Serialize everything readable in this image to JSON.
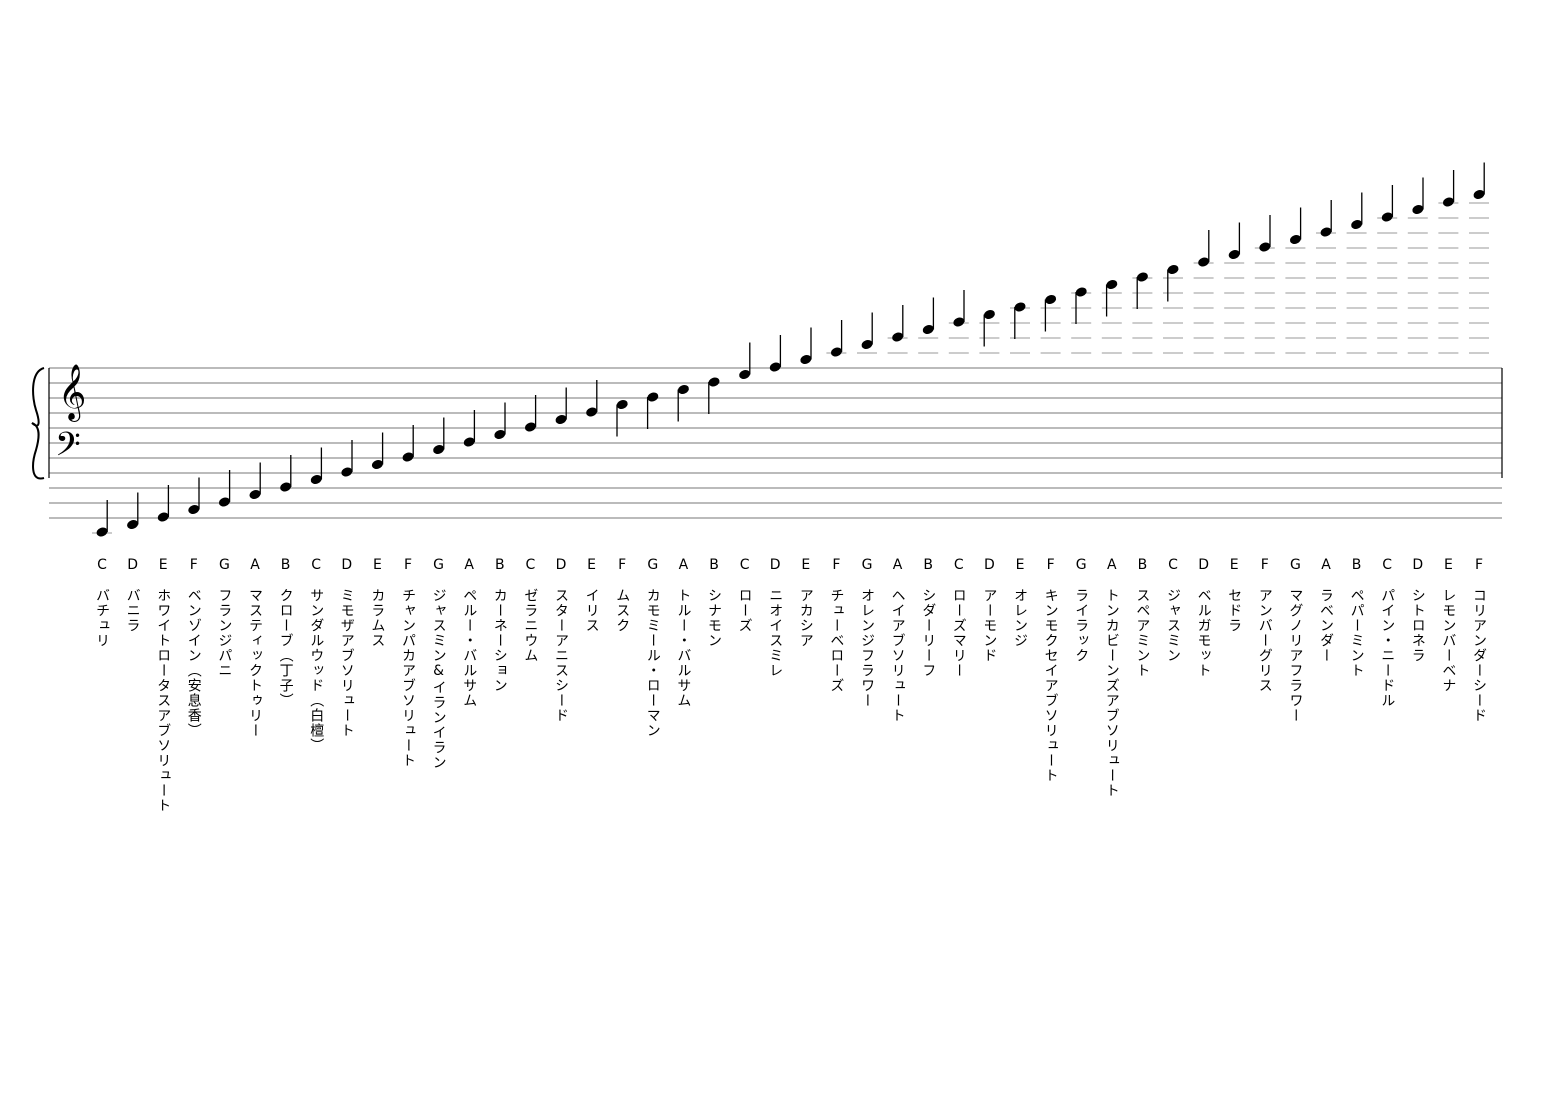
{
  "notes": [
    {
      "letter": "C",
      "name": "バチュリ"
    },
    {
      "letter": "D",
      "name": "バニラ"
    },
    {
      "letter": "E",
      "name": "ホワイトロータスアブソリュート"
    },
    {
      "letter": "F",
      "name": "ベンゾイン（安息香）"
    },
    {
      "letter": "G",
      "name": "フランジパニ"
    },
    {
      "letter": "A",
      "name": "マスティックトゥリー"
    },
    {
      "letter": "B",
      "name": "クローブ（丁子）"
    },
    {
      "letter": "C",
      "name": "サンダルウッド（白檀）"
    },
    {
      "letter": "D",
      "name": "ミモザアブソリュート"
    },
    {
      "letter": "E",
      "name": "カラムス"
    },
    {
      "letter": "F",
      "name": "チャンパカアブソリュート"
    },
    {
      "letter": "G",
      "name": "ジャスミン&イランイラン"
    },
    {
      "letter": "A",
      "name": "ペルー・バルサム"
    },
    {
      "letter": "B",
      "name": "カーネーション"
    },
    {
      "letter": "C",
      "name": "ゼラニウム"
    },
    {
      "letter": "D",
      "name": "スターアニスシード"
    },
    {
      "letter": "E",
      "name": "イリス"
    },
    {
      "letter": "F",
      "name": "ムスク"
    },
    {
      "letter": "G",
      "name": "カモミール・ローマン"
    },
    {
      "letter": "A",
      "name": "トルー・バルサム"
    },
    {
      "letter": "B",
      "name": "シナモン"
    },
    {
      "letter": "C",
      "name": "ローズ"
    },
    {
      "letter": "D",
      "name": "ニオイスミレ"
    },
    {
      "letter": "E",
      "name": "アカシア"
    },
    {
      "letter": "F",
      "name": "チューベローズ"
    },
    {
      "letter": "G",
      "name": "オレンジフラワー"
    },
    {
      "letter": "A",
      "name": "ヘイアブソリュート"
    },
    {
      "letter": "B",
      "name": "シダーリーフ"
    },
    {
      "letter": "C",
      "name": "ローズマリー"
    },
    {
      "letter": "D",
      "name": "アーモンド"
    },
    {
      "letter": "E",
      "name": "オレンジ"
    },
    {
      "letter": "F",
      "name": "キンモクセイアブソリュート"
    },
    {
      "letter": "G",
      "name": "ライラック"
    },
    {
      "letter": "A",
      "name": "トンカビーンズアブソリュート"
    },
    {
      "letter": "B",
      "name": "スペアミント"
    },
    {
      "letter": "C",
      "name": "ジャスミン"
    },
    {
      "letter": "D",
      "name": "ベルガモット"
    },
    {
      "letter": "E",
      "name": "セドラ"
    },
    {
      "letter": "F",
      "name": "アンバーグリス"
    },
    {
      "letter": "G",
      "name": "マグノリアフラワー"
    },
    {
      "letter": "A",
      "name": "ラベンダー"
    },
    {
      "letter": "B",
      "name": "ペパーミント"
    },
    {
      "letter": "C",
      "name": "パイン・ニードル"
    },
    {
      "letter": "D",
      "name": "シトロネラ"
    },
    {
      "letter": "E",
      "name": "レモンバーベナ"
    },
    {
      "letter": "F",
      "name": "コリアンダーシード"
    }
  ],
  "clefs": {
    "treble": "𝄞",
    "bass": "𝄢"
  },
  "colors": {
    "ink": "#000000",
    "ledger": "#9a9a9a",
    "staff": "#777777"
  }
}
